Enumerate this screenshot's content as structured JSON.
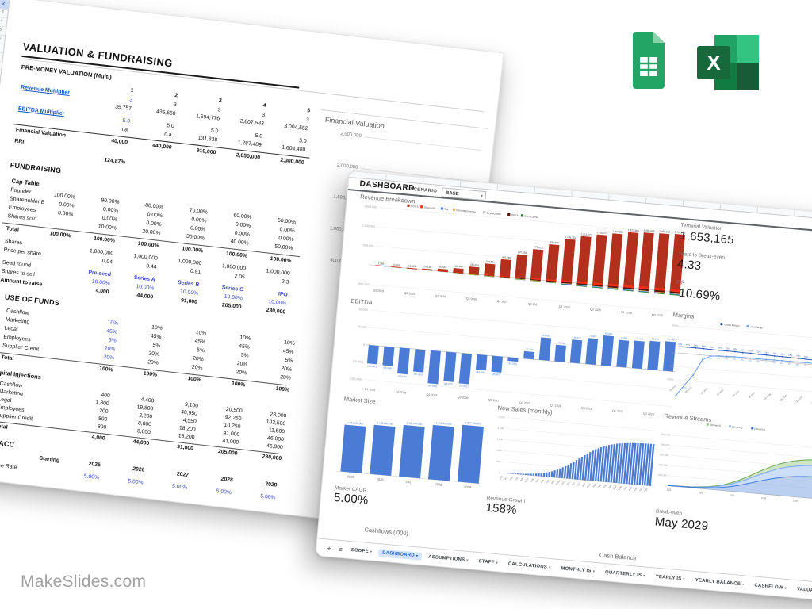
{
  "branding": {
    "watermark": "MakeSlides.com"
  },
  "icons": {
    "caret_down": "▾",
    "plus": "+",
    "menu": "≡",
    "google_sheets": "google-sheets-icon",
    "excel": "excel-icon"
  },
  "colors": {
    "link": "#1155cc",
    "input_blue": "#3644cf",
    "tab_active": "#1b66d2",
    "tab_active_bg": "#d7e4fd",
    "sheets_green": "#23a566",
    "excel_green": "#185c37",
    "chart_blue": "#4a7cd6"
  },
  "valuation_sheet": {
    "title": "VALUATION & FUNDRAISING",
    "row_numbers": [
      "2",
      "3",
      "4",
      "5",
      "6",
      "7",
      "8",
      "9",
      "10"
    ],
    "premoney": {
      "heading": "PRE-MONEY VALUATION (Multi)",
      "col_headers": [
        "1",
        "2",
        "3",
        "4",
        "5"
      ],
      "revenue_multiplier": {
        "label": "Revenue Multiplier",
        "line1": [
          "3",
          "3",
          "3",
          "3",
          "3"
        ],
        "line2": [
          "35,757",
          "435,650",
          "1,694,776",
          "2,807,583",
          "3,004,552"
        ]
      },
      "ebitda_multiplier": {
        "label": "EBITDA Multiplier",
        "line1": [
          "5.0",
          "5.0",
          "5.0",
          "5.0",
          "5.0"
        ],
        "line2": [
          "n.a.",
          "n.a.",
          "131,838",
          "1,287,489",
          "1,604,488"
        ]
      },
      "valuation_row": {
        "label": "Financial Valuation",
        "values": [
          "40,000",
          "440,000",
          "910,000",
          "2,050,000",
          "2,300,000"
        ]
      },
      "rri_row": {
        "label": "RRI",
        "value": "124.87%"
      }
    },
    "fundraising": {
      "heading": "FUNDRAISING",
      "cap_table_heading": "Cap Table",
      "cap_rows": [
        {
          "label": "Founder",
          "values": [
            "100.00%",
            "90.00%",
            "80.00%",
            "70.00%",
            "60.00%",
            "50.00%"
          ]
        },
        {
          "label": "Shareholder B",
          "values": [
            "0.00%",
            "0.00%",
            "0.00%",
            "0.00%",
            "0.00%",
            "0.00%"
          ]
        },
        {
          "label": "Employees",
          "values": [
            "0.00%",
            "0.00%",
            "0.00%",
            "0.00%",
            "0.00%",
            "0.00%"
          ]
        },
        {
          "label": "Shares sold",
          "values": [
            "",
            "10.00%",
            "20.00%",
            "30.00%",
            "40.00%",
            "50.00%"
          ]
        },
        {
          "label": "Total",
          "values": [
            "100.00%",
            "100.00%",
            "100.00%",
            "100.00%",
            "100.00%",
            "100.00%"
          ]
        }
      ],
      "share_rows": [
        {
          "label": "Shares",
          "values": [
            "1,000,000",
            "1,000,000",
            "1,000,000",
            "1,000,000",
            "1,000,000"
          ]
        },
        {
          "label": "Price per share",
          "values": [
            "0.04",
            "0.44",
            "0.91",
            "2.05",
            "2.3"
          ]
        }
      ],
      "round_rows": [
        {
          "label": "Seed round",
          "values": [
            "Pre-seed",
            "Series A",
            "Series B",
            "Series C",
            "IPO"
          ]
        },
        {
          "label": "Shares to sell",
          "values": [
            "10.00%",
            "10.00%",
            "10.00%",
            "10.00%",
            "10.00%"
          ]
        },
        {
          "label": "Amount to raise",
          "values": [
            "4,000",
            "44,000",
            "91,000",
            "205,000",
            "230,000"
          ]
        }
      ]
    },
    "use_of_funds": {
      "heading": "USE OF FUNDS",
      "pct_rows": [
        {
          "label": "Cashflow",
          "values": [
            "10%",
            "10%",
            "10%",
            "10%",
            "10%"
          ]
        },
        {
          "label": "Marketing",
          "values": [
            "45%",
            "45%",
            "45%",
            "45%",
            "45%"
          ]
        },
        {
          "label": "Legal",
          "values": [
            "5%",
            "5%",
            "5%",
            "5%",
            "5%"
          ]
        },
        {
          "label": "Employees",
          "values": [
            "20%",
            "20%",
            "20%",
            "20%",
            "20%"
          ]
        },
        {
          "label": "Supplier Credit",
          "values": [
            "20%",
            "20%",
            "20%",
            "20%",
            "20%"
          ]
        },
        {
          "label": "Total",
          "values": [
            "100%",
            "100%",
            "100%",
            "100%",
            "100%"
          ]
        }
      ],
      "injections_heading": "Capital Injections",
      "inj_rows": [
        {
          "label": "Cashflow",
          "values": [
            "400",
            "4,400",
            "9,100",
            "20,500",
            "23,000"
          ]
        },
        {
          "label": "Marketing",
          "values": [
            "1,800",
            "19,800",
            "40,950",
            "92,250",
            "103,500"
          ]
        },
        {
          "label": "Legal",
          "values": [
            "200",
            "2,200",
            "4,550",
            "10,250",
            "11,500"
          ]
        },
        {
          "label": "Employees",
          "values": [
            "800",
            "8,800",
            "18,200",
            "41,000",
            "46,000"
          ]
        },
        {
          "label": "Supplier Credit",
          "values": [
            "800",
            "8,800",
            "18,200",
            "41,000",
            "46,000"
          ]
        },
        {
          "label": "Total",
          "values": [
            "4,000",
            "44,000",
            "91,000",
            "205,000",
            "230,000"
          ]
        }
      ]
    },
    "wacc": {
      "heading": "WACC",
      "year_headers": [
        "Starting",
        "2025",
        "2026",
        "2027",
        "2028",
        "2029"
      ],
      "rows": [
        {
          "label": "Risk-free Rate",
          "values": [
            "5.00%",
            "5.00%",
            "5.00%",
            "5.00%",
            "5.00%"
          ]
        }
      ]
    },
    "fv_chart": {
      "title": "Financial Valuation",
      "y_labels": [
        "2,500,000",
        "2,000,000",
        "1,500,000",
        "1,000,000",
        "500,000"
      ]
    }
  },
  "dashboard_sheet": {
    "title": "DASHBOARD",
    "scenario_label": "SCENARIO",
    "scenario_value": "BASE",
    "kpis": [
      {
        "label": "Terminal Valuation",
        "value": "1,653,165"
      },
      {
        "label": "Years to Break-even",
        "value": "4.33"
      },
      {
        "label": "IRR",
        "value": "-10.69%"
      }
    ],
    "big_stats": [
      {
        "label": "Market CAGR",
        "value": "5.00%"
      },
      {
        "label": "Revenue Growth",
        "value": "158%"
      },
      {
        "label": "Break-even",
        "value": "May 2029"
      }
    ],
    "bottom_chart_titles": [
      "Cashflows ('000)",
      "Cash Balance"
    ],
    "tabs": {
      "active": "DASHBOARD",
      "items": [
        "SCOPE",
        "DASHBOARD",
        "ASSUMPTIONS",
        "STAFF",
        "CALCULATIONS",
        "MONTHLY IS",
        "QUARTERLY IS",
        "YEARLY IS",
        "YEARLY BALANCE",
        "CASHFLOW",
        "VALUATION"
      ]
    }
  },
  "chart_data": [
    {
      "id": "revenue_breakdown",
      "type": "stacked-bar",
      "title": "Revenue Breakdown",
      "legend": [
        {
          "label": "COGS",
          "color": "#b3301c"
        },
        {
          "label": "Discounts",
          "color": "#ff2e17"
        },
        {
          "label": "Tax",
          "color": "#4a86e8"
        },
        {
          "label": "Interest Expense",
          "color": "#f6b73c"
        },
        {
          "label": "Depreciation",
          "color": "#bdbdbd"
        },
        {
          "label": "OPEX",
          "color": "#5b1408"
        },
        {
          "label": "Net Income",
          "color": "#2e7d32"
        }
      ],
      "categories": [
        "Q1 2025",
        "Q2 2025",
        "Q3 2025",
        "Q4 2025",
        "Q1 2026",
        "Q2 2026",
        "Q3 2026",
        "Q4 2026",
        "Q1 2027",
        "Q2 2027",
        "Q3 2027",
        "Q4 2027",
        "Q1 2028",
        "Q2 2028",
        "Q3 2028",
        "Q4 2028",
        "Q1 2029",
        "Q2 2029",
        "Q3 2029",
        "Q4 2029"
      ],
      "x_tick_labels": [
        "Q1 2025",
        "Q3 2025",
        "Q1 2026",
        "Q3 2026",
        "Q1 2027",
        "Q3 2027",
        "Q1 2028",
        "Q3 2028",
        "Q1 2029",
        "Q3 2029"
      ],
      "totals": [
        1389,
        5569,
        13325,
        29636,
        60661,
        111343,
        185894,
        298609,
        445736,
        607356,
        775029,
        936290,
        1105752,
        1215077,
        1295373,
        1357630,
        1423966,
        1450013,
        1466102,
        1482752
      ],
      "total_labels": [
        "1,389",
        "5,569",
        "13,325",
        "29,636",
        "60,661",
        "111,343",
        "185,894",
        "298,609",
        "445,736",
        "607,356",
        "775,029",
        "936,290",
        "1,105,752",
        "1,215,077",
        "1,295,373",
        "1,357,630",
        "1,423,966",
        "1,450,013",
        "1,466,102",
        "1,482,752"
      ],
      "below_axis": {
        "opex": [
          8000,
          10000,
          13000,
          17000,
          22000,
          28000,
          35000,
          43000,
          52000,
          62000,
          72000,
          82000,
          92000,
          101000,
          109000,
          116000,
          122000,
          127000,
          131000,
          134000
        ],
        "net_income": [
          4000,
          5000,
          7000,
          9000,
          11000,
          14000,
          17000,
          21000,
          25000,
          29000,
          33000,
          37000,
          41000,
          44000,
          47000,
          50000,
          52000,
          54000,
          56000,
          58000
        ]
      },
      "y_ticks": [
        "1,500,000",
        "1,000,000",
        "500,000",
        "0",
        "(500,000)"
      ],
      "ylim": [
        -500000,
        1500000
      ]
    },
    {
      "id": "ebitda",
      "type": "bar",
      "title": "EBITDA",
      "color": "#4a7cd6",
      "categories": [
        "Q1 2025",
        "Q2 2025",
        "Q3 2025",
        "Q4 2025",
        "Q1 2026",
        "Q2 2026",
        "Q3 2026",
        "Q4 2026",
        "Q1 2027",
        "Q2 2027",
        "Q3 2027",
        "Q4 2027",
        "Q1 2028",
        "Q2 2028",
        "Q3 2028",
        "Q4 2028",
        "Q1 2029",
        "Q2 2029",
        "Q3 2029",
        "Q4 2029"
      ],
      "x_tick_labels": [
        "Q1 2025",
        "Q3 2025",
        "Q1 2026",
        "Q3 2026",
        "Q1 2027",
        "Q3 2027",
        "Q1 2028",
        "Q3 2028",
        "Q1 2029",
        "Q3 2029"
      ],
      "values": [
        -53141,
        -54354,
        -74446,
        -64754,
        -94535,
        -84533,
        -87021,
        -43295,
        -45647,
        -10582,
        21044,
        64833,
        47244,
        66113,
        74502,
        85882,
        76881,
        78744,
        82270,
        84781
      ],
      "labels": [
        "(53,141)",
        "(54,354)",
        "(74,446)",
        "(64,754)",
        "(94,535)",
        "(84,533)",
        "(87,021)",
        "(43,295)",
        "(45,647)",
        "(10,582)",
        "21,044",
        "64,833",
        "47,244",
        "66,113",
        "74,502",
        "85,882",
        "76,881",
        "78,744",
        "82,270",
        "84,781"
      ],
      "y_ticks": [
        "100,000",
        "50,000",
        "0",
        "(50,000)",
        "(100,000)"
      ],
      "ylim": [
        -100000,
        100000
      ]
    },
    {
      "id": "market_size",
      "type": "bar-simple",
      "title": "Market Size",
      "color": "#4a7cd6",
      "categories": [
        "2025",
        "2026",
        "2027",
        "2028",
        "2029"
      ],
      "values": [
        1051200000,
        1103800000,
        1158900000,
        1216900000,
        1277700000
      ],
      "labels": [
        "1,051,200,000",
        "1,103,800,000",
        "1,158,900,000",
        "1,216,900,000",
        "1,277,700,000"
      ]
    },
    {
      "id": "new_sales",
      "type": "bar-dense",
      "title": "New Sales (monthly)",
      "color": "#4a7cd6",
      "y_ticks": [
        "2,500",
        "2,000",
        "1,500",
        "1,000",
        "500",
        "0"
      ],
      "ylim": [
        0,
        2500
      ],
      "x_labels": [
        "1/25",
        "3/25",
        "5/25",
        "7/25",
        "9/25",
        "11/25",
        "1/26",
        "3/26",
        "5/26",
        "7/26",
        "9/26",
        "11/26",
        "1/27",
        "3/27",
        "5/27",
        "7/27",
        "9/27",
        "11/27",
        "1/28",
        "3/28",
        "5/28",
        "7/28",
        "9/28",
        "11/28",
        "1/29",
        "3/29",
        "5/29",
        "7/29",
        "9/29"
      ],
      "values": [
        10,
        12,
        15,
        17,
        21,
        25,
        30,
        36,
        42,
        51,
        60,
        72,
        85,
        101,
        120,
        141,
        167,
        196,
        231,
        270,
        314,
        364,
        420,
        482,
        549,
        622,
        700,
        781,
        865,
        950,
        1035,
        1119,
        1200,
        1278,
        1351,
        1418,
        1480,
        1536,
        1586,
        1630,
        1669,
        1704,
        1733,
        1758,
        1780,
        1799,
        1815,
        1828,
        1840,
        1850,
        1858,
        1864,
        1870,
        1875,
        1879,
        1882,
        1885,
        1888
      ]
    },
    {
      "id": "margins",
      "type": "line",
      "title": "Margins",
      "categories": [
        "Q1 2025",
        "Q2 2025",
        "Q3 2025",
        "Q4 2025",
        "Q1 2026",
        "Q2 2026",
        "Q3 2026",
        "Q4 2026",
        "Q1 2027",
        "Q2 2027",
        "Q3 2027",
        "Q4 2027",
        "Q1 2028",
        "Q2 2028",
        "Q3 2028",
        "Q4 2028",
        "Q1 2029",
        "Q2 2029",
        "Q3 2029",
        "Q4 2029"
      ],
      "x_tick_labels": [
        "Q1 2025",
        "Q3 2025",
        "Q1 2026",
        "Q3 2026",
        "Q1 2027",
        "Q3 2027",
        "Q1 2028",
        "Q3 2028",
        "Q1 2029",
        "Q3 2029"
      ],
      "y_ticks": [
        "100%",
        "50%",
        "0%",
        "-50%",
        "-100%"
      ],
      "ylim": [
        -100,
        100
      ],
      "series": [
        {
          "name": "Gross Margin",
          "color": "#2856b5",
          "values": [
            24,
            24,
            24,
            24,
            23,
            23,
            23,
            23,
            22,
            22,
            21,
            21,
            20,
            20,
            19,
            19,
            18,
            18,
            17,
            17
          ],
          "labels": [
            "24%",
            "24%",
            "24%",
            "24%",
            "23%",
            "23%",
            "23%",
            "23%",
            "22%",
            "22%",
            "21%",
            "21%",
            "20%",
            "20%",
            "19%",
            "19%",
            "18%",
            "18%",
            "17%",
            "17%"
          ]
        },
        {
          "name": "Net Margin",
          "color": "#6d9eeb",
          "values": [
            -160,
            -117,
            -77,
            -17,
            -1,
            2,
            3,
            4,
            4,
            4,
            4,
            4,
            5,
            5,
            5,
            5,
            5,
            5,
            5,
            5
          ],
          "labels": [
            "",
            "-117%",
            "-77%",
            "-17%",
            "-1%",
            "2%",
            "3%",
            "4%",
            "4%",
            "4%",
            "4%",
            "4%",
            "5%",
            "5%",
            "5%",
            "5%",
            "5%",
            "5%",
            "5%",
            "5%"
          ]
        }
      ]
    },
    {
      "id": "revenue_streams",
      "type": "stacked-area",
      "title": "Revenue Streams",
      "legend": [
        {
          "label": "[Stream3]",
          "color": "#93c47d"
        },
        {
          "label": "[stream2]",
          "color": "#a4c2f4"
        },
        {
          "label": "[Stream1]",
          "color": "#3c78d8"
        }
      ],
      "x_labels": [
        "1/25",
        "1/26",
        "1/27",
        "1/28",
        "1/29"
      ],
      "y_ticks": [
        "500,000",
        "400,000",
        "300,000",
        "200,000",
        "100,000",
        "0"
      ],
      "ylim": [
        0,
        500000
      ],
      "series": [
        {
          "name": "[Stream1]",
          "color": "#3c78d8",
          "values": [
            2000,
            3000,
            4000,
            6000,
            9000,
            14000,
            21000,
            32000,
            47000,
            66000,
            89000,
            113000,
            137000,
            158000,
            176000,
            190000,
            200000,
            207000,
            212000,
            215000
          ]
        },
        {
          "name": "[stream2]",
          "color": "#a4c2f4",
          "values": [
            1000,
            1500,
            2000,
            3000,
            5000,
            7000,
            11000,
            17000,
            25000,
            35000,
            46000,
            59000,
            71000,
            83000,
            92000,
            99000,
            104000,
            108000,
            110000,
            112000
          ]
        },
        {
          "name": "[Stream3]",
          "color": "#93c47d",
          "values": [
            500,
            800,
            1000,
            1500,
            2500,
            4000,
            6000,
            9000,
            13000,
            18000,
            24000,
            30000,
            37000,
            42000,
            47000,
            51000,
            54000,
            56000,
            57000,
            58000
          ]
        }
      ]
    }
  ]
}
